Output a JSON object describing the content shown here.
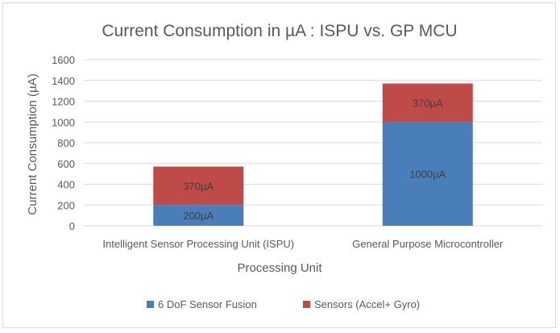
{
  "chart_data": {
    "type": "bar",
    "stacked": true,
    "title": "Current Consumption in µA : ISPU vs. GP MCU",
    "xlabel": "Processing Unit",
    "ylabel": "Current Consumption (µA)",
    "ylim": [
      0,
      1600
    ],
    "yticks": [
      "0",
      "200",
      "400",
      "600",
      "800",
      "1000",
      "1200",
      "1400",
      "1600"
    ],
    "grid": true,
    "legend_position": "bottom",
    "categories": [
      "Intelligent Sensor Processing Unit (ISPU)",
      "General Purpose Microcontroller"
    ],
    "series": [
      {
        "name": "6 DoF Sensor Fusion",
        "color": "#4a7ebb",
        "values": [
          200,
          1000
        ],
        "labels": [
          "200µA",
          "1000µA"
        ]
      },
      {
        "name": "Sensors (Accel+ Gyro)",
        "color": "#be4b48",
        "values": [
          370,
          370
        ],
        "labels": [
          "370µA",
          "370µA"
        ]
      }
    ]
  }
}
